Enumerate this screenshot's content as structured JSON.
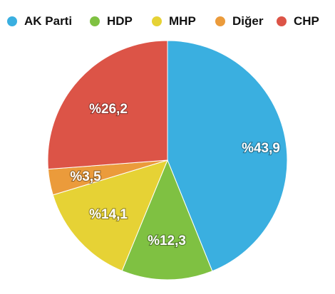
{
  "chart_data": {
    "type": "pie",
    "categories": [
      "AK Parti",
      "HDP",
      "MHP",
      "Diğer",
      "CHP"
    ],
    "values": [
      43.9,
      12.3,
      14.1,
      3.5,
      26.2
    ],
    "labels": [
      "%43,9",
      "%12,3",
      "%14,1",
      "%3,5",
      "%26,2"
    ],
    "colors": [
      "#3aafe0",
      "#7fc142",
      "#e6d235",
      "#eb9b3b",
      "#dc5447"
    ],
    "legend_position": "top",
    "title": ""
  }
}
